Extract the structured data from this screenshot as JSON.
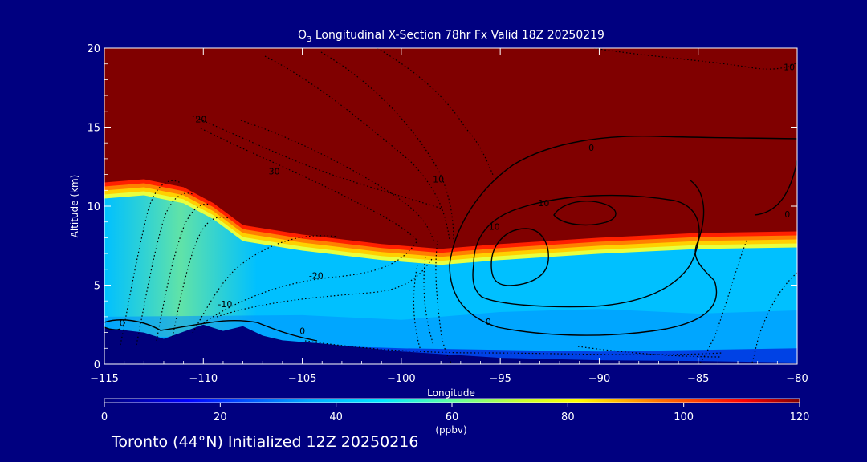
{
  "title_prefix": "O",
  "title_subscript": "3",
  "title_rest": " Longitudinal X-Section 78hr  Fx Valid 18Z 20250219",
  "footer": "Toronto (44°N) Initialized 12Z 20250216",
  "chart_data": {
    "type": "heatmap",
    "xlabel": "Longitude",
    "ylabel": "Altitude (km)",
    "xlim": [
      -115,
      -80
    ],
    "ylim": [
      0,
      20
    ],
    "xticks": [
      -115,
      -110,
      -105,
      -100,
      -95,
      -90,
      -85,
      -80
    ],
    "xtick_labels": [
      "−115",
      "−110",
      "−105",
      "−100",
      "−95",
      "−90",
      "−85",
      "−80"
    ],
    "yticks": [
      0,
      5,
      10,
      15,
      20
    ],
    "ytick_labels": [
      "0",
      "5",
      "10",
      "15",
      "20"
    ],
    "colorbar": {
      "label": "(ppbv)",
      "min": 0,
      "max": 120,
      "ticks": [
        0,
        20,
        40,
        60,
        80,
        100,
        120
      ],
      "tick_labels": [
        "0",
        "20",
        "40",
        "60",
        "80",
        "100",
        "120"
      ]
    },
    "tropopause_height_km": [
      {
        "lon": -115,
        "alt": 11.5
      },
      {
        "lon": -113,
        "alt": 11.7
      },
      {
        "lon": -111,
        "alt": 11.2
      },
      {
        "lon": -109.5,
        "alt": 10.2
      },
      {
        "lon": -108,
        "alt": 8.8
      },
      {
        "lon": -105,
        "alt": 8.2
      },
      {
        "lon": -101,
        "alt": 7.6
      },
      {
        "lon": -98,
        "alt": 7.3
      },
      {
        "lon": -95,
        "alt": 7.6
      },
      {
        "lon": -90,
        "alt": 8.0
      },
      {
        "lon": -85,
        "alt": 8.3
      },
      {
        "lon": -80,
        "alt": 8.4
      }
    ],
    "terrain_km": [
      {
        "lon": -115,
        "alt": 2.3
      },
      {
        "lon": -113,
        "alt": 2.0
      },
      {
        "lon": -112,
        "alt": 1.6
      },
      {
        "lon": -110,
        "alt": 2.5
      },
      {
        "lon": -109,
        "alt": 2.1
      },
      {
        "lon": -108,
        "alt": 2.4
      },
      {
        "lon": -107,
        "alt": 1.8
      },
      {
        "lon": -106,
        "alt": 1.5
      },
      {
        "lon": -104,
        "alt": 1.3
      },
      {
        "lon": -100,
        "alt": 0.8
      },
      {
        "lon": -95,
        "alt": 0.4
      },
      {
        "lon": -90,
        "alt": 0.25
      },
      {
        "lon": -85,
        "alt": 0.2
      },
      {
        "lon": -80,
        "alt": 0.1
      }
    ],
    "contour_labels": [
      {
        "text": "-20",
        "lon": -110.2,
        "alt": 15.3
      },
      {
        "text": "-30",
        "lon": -106.5,
        "alt": 12.0
      },
      {
        "text": "-10",
        "lon": -98.2,
        "alt": 11.5
      },
      {
        "text": "-20",
        "lon": -104.3,
        "alt": 5.4
      },
      {
        "text": "-10",
        "lon": -108.9,
        "alt": 3.6
      },
      {
        "text": "0",
        "lon": -105,
        "alt": 1.9
      },
      {
        "text": "0",
        "lon": -90.4,
        "alt": 13.5
      },
      {
        "text": "10",
        "lon": -92.8,
        "alt": 10.0
      },
      {
        "text": "10",
        "lon": -95.3,
        "alt": 8.5
      },
      {
        "text": "0",
        "lon": -95.6,
        "alt": 2.5
      },
      {
        "text": "10",
        "lon": -80.4,
        "alt": 18.6
      },
      {
        "text": "0",
        "lon": -80.5,
        "alt": 9.3
      },
      {
        "text": "0",
        "lon": -114.1,
        "alt": 2.4
      }
    ]
  }
}
